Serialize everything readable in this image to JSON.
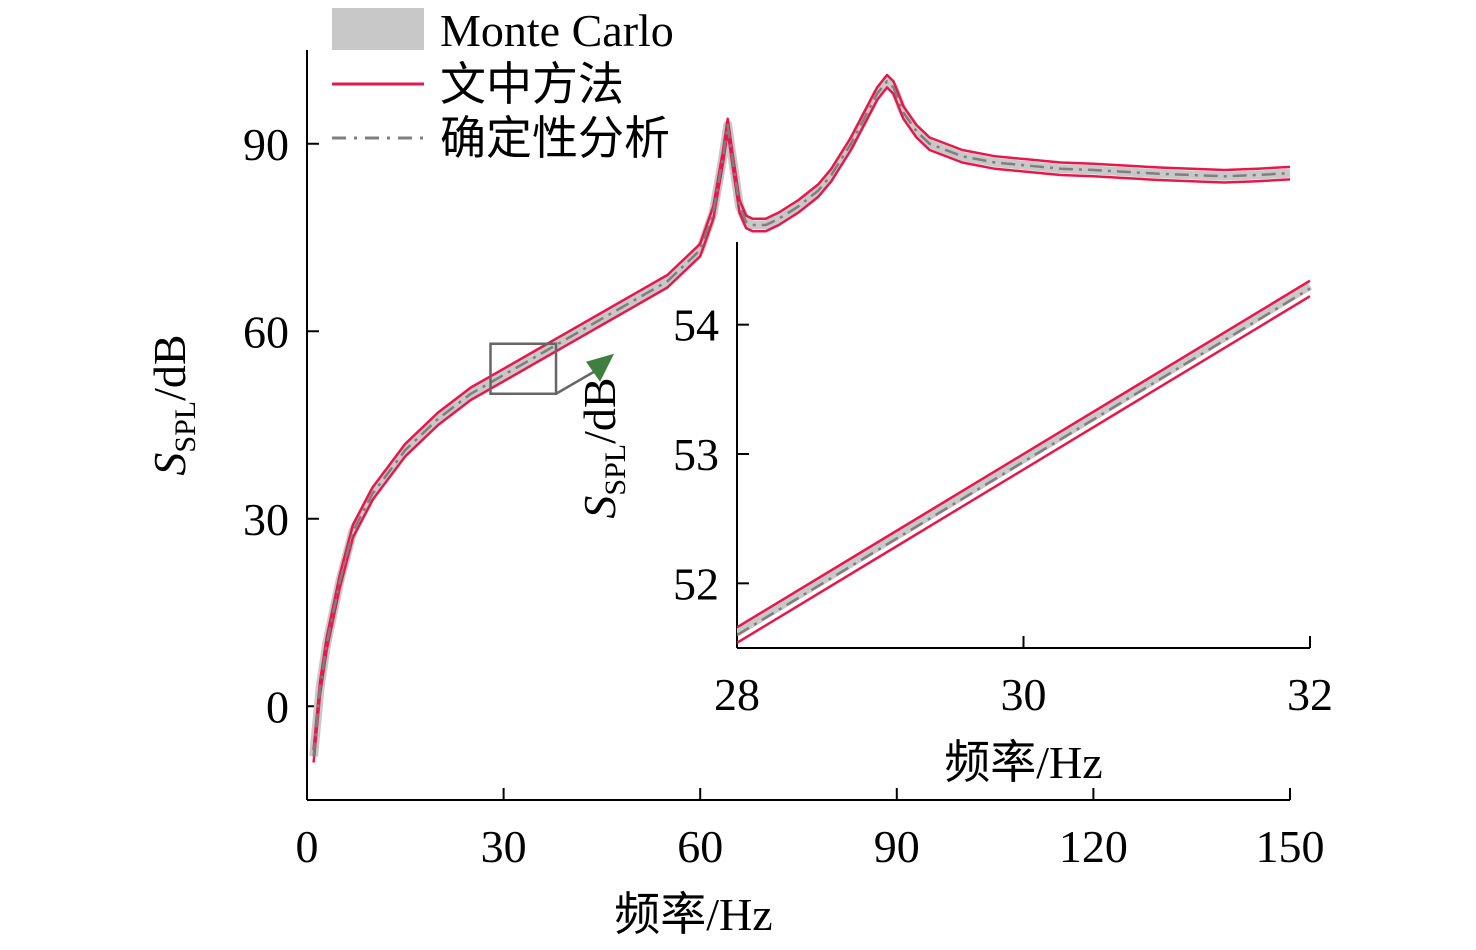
{
  "chart_data": [
    {
      "type": "line",
      "xlabel": "频率/Hz",
      "ylabel_main": "S",
      "ylabel_sub": "SPL",
      "ylabel_unit": "/dB",
      "xlim": [
        0,
        150
      ],
      "ylim": [
        -15,
        105
      ],
      "xticks": [
        0,
        30,
        60,
        90,
        120,
        150
      ],
      "yticks": [
        0,
        30,
        60,
        90
      ],
      "legend": {
        "position": "top-left",
        "entries": [
          {
            "label": "Monte Carlo",
            "style": "band",
            "color": "#c8c8c8"
          },
          {
            "label": "文中方法",
            "style": "solid",
            "color": "#e8174a"
          },
          {
            "label": "确定性分析",
            "style": "dash-dot",
            "color": "#7f7f7f"
          }
        ]
      },
      "series": [
        {
          "name": "Monte Carlo",
          "x": [
            1,
            2,
            3,
            5,
            7,
            10,
            15,
            20,
            25,
            30,
            35,
            40,
            45,
            50,
            55,
            60,
            62,
            63.5,
            64.2,
            65,
            66,
            67,
            68,
            70,
            72,
            75,
            78,
            80,
            83,
            85,
            87,
            88.5,
            89.5,
            91,
            93,
            95,
            100,
            105,
            110,
            115,
            120,
            125,
            130,
            135,
            140,
            145,
            150
          ],
          "y": [
            -8,
            3,
            10,
            20,
            28,
            34,
            41,
            46,
            50,
            53,
            56,
            59,
            62,
            65,
            68,
            73,
            79,
            88,
            93,
            87,
            80,
            77.5,
            77,
            77,
            78,
            80,
            82.5,
            85,
            90,
            94,
            98,
            100,
            99,
            95,
            92,
            90,
            88,
            87,
            86.5,
            86,
            85.8,
            85.5,
            85.2,
            85,
            84.8,
            85,
            85.3
          ],
          "band": 1.2
        },
        {
          "name": "文中方法",
          "x": [
            1,
            2,
            3,
            5,
            7,
            10,
            15,
            20,
            25,
            30,
            35,
            40,
            45,
            50,
            55,
            60,
            62,
            63.5,
            64.2,
            65,
            66,
            67,
            68,
            70,
            72,
            75,
            78,
            80,
            83,
            85,
            87,
            88.5,
            89.5,
            91,
            93,
            95,
            100,
            105,
            110,
            115,
            120,
            125,
            130,
            135,
            140,
            145,
            150
          ],
          "y": [
            -8,
            3,
            10,
            20,
            28,
            34,
            41,
            46,
            50,
            53,
            56,
            59,
            62,
            65,
            68,
            73,
            79,
            88,
            93,
            87,
            80,
            77.5,
            77,
            77,
            78,
            80,
            82.5,
            85,
            90,
            94,
            98,
            100,
            99,
            95,
            92,
            90,
            88,
            87,
            86.5,
            86,
            85.8,
            85.5,
            85.2,
            85,
            84.8,
            85,
            85.3
          ],
          "band": 1.0
        },
        {
          "name": "确定性分析",
          "x": [
            1,
            2,
            3,
            5,
            7,
            10,
            15,
            20,
            25,
            30,
            35,
            40,
            45,
            50,
            55,
            60,
            62,
            63.5,
            64.2,
            65,
            66,
            67,
            68,
            70,
            72,
            75,
            78,
            80,
            83,
            85,
            87,
            88.5,
            89.5,
            91,
            93,
            95,
            100,
            105,
            110,
            115,
            120,
            125,
            130,
            135,
            140,
            145,
            150
          ],
          "y": [
            -8,
            3,
            10,
            20,
            28,
            34,
            41,
            46,
            50,
            53,
            56,
            59,
            62,
            65,
            68,
            73,
            79,
            88,
            93,
            87,
            80,
            77.5,
            77,
            77,
            78,
            80,
            82.5,
            85,
            90,
            94,
            98,
            100,
            99,
            95,
            92,
            90,
            88,
            87,
            86.5,
            86,
            85.8,
            85.5,
            85.2,
            85,
            84.8,
            85,
            85.3
          ]
        }
      ],
      "zoom_box": {
        "x": [
          28,
          38
        ],
        "y": [
          50,
          58
        ]
      }
    },
    {
      "type": "line",
      "xlabel": "频率/Hz",
      "ylabel_main": "S",
      "ylabel_sub": "SPL",
      "ylabel_unit": "/dB",
      "xlim": [
        28,
        32
      ],
      "ylim": [
        51.5,
        54.5
      ],
      "xticks": [
        28,
        30,
        32
      ],
      "yticks": [
        52,
        53,
        54
      ],
      "series": [
        {
          "name": "Monte Carlo",
          "x": [
            28,
            32
          ],
          "y": [
            51.62,
            54.3
          ],
          "band": 0.06
        },
        {
          "name": "文中方法",
          "x": [
            28,
            32
          ],
          "y": [
            51.6,
            54.28
          ],
          "band": 0.06
        },
        {
          "name": "确定性分析",
          "x": [
            28,
            32
          ],
          "y": [
            51.6,
            54.28
          ]
        }
      ]
    }
  ],
  "colors": {
    "mc": "#c8c8c8",
    "method": "#e8174a",
    "det": "#7f7f7f",
    "arrow": "#3f7f3f",
    "box": "#666666"
  }
}
